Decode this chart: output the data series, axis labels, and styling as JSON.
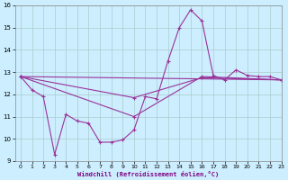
{
  "xlabel": "Windchill (Refroidissement éolien,°C)",
  "bg_color": "#cceeff",
  "line_color": "#993399",
  "grid_color": "#aacccc",
  "series1_x": [
    0,
    1,
    2,
    3,
    4,
    5,
    6,
    7,
    8,
    9,
    10,
    11,
    12,
    13,
    14,
    15,
    16,
    17,
    18,
    19,
    20,
    21,
    22,
    23
  ],
  "series1_y": [
    12.8,
    12.2,
    11.9,
    9.3,
    11.1,
    10.8,
    10.7,
    9.85,
    9.85,
    9.95,
    10.4,
    11.9,
    11.8,
    13.5,
    15.0,
    15.8,
    15.3,
    12.85,
    12.65,
    13.1,
    12.85,
    12.8,
    12.8,
    12.65
  ],
  "series2_x": [
    0,
    23
  ],
  "series2_y": [
    12.8,
    12.65
  ],
  "series3_x": [
    0,
    10,
    16,
    23
  ],
  "series3_y": [
    12.8,
    11.0,
    12.8,
    12.65
  ],
  "series4_x": [
    0,
    10,
    16,
    23
  ],
  "series4_y": [
    12.8,
    11.85,
    12.75,
    12.65
  ],
  "ylim": [
    9,
    16
  ],
  "xlim": [
    -0.5,
    23
  ],
  "yticks": [
    9,
    10,
    11,
    12,
    13,
    14,
    15,
    16
  ],
  "xticks": [
    0,
    1,
    2,
    3,
    4,
    5,
    6,
    7,
    8,
    9,
    10,
    11,
    12,
    13,
    14,
    15,
    16,
    17,
    18,
    19,
    20,
    21,
    22,
    23
  ]
}
